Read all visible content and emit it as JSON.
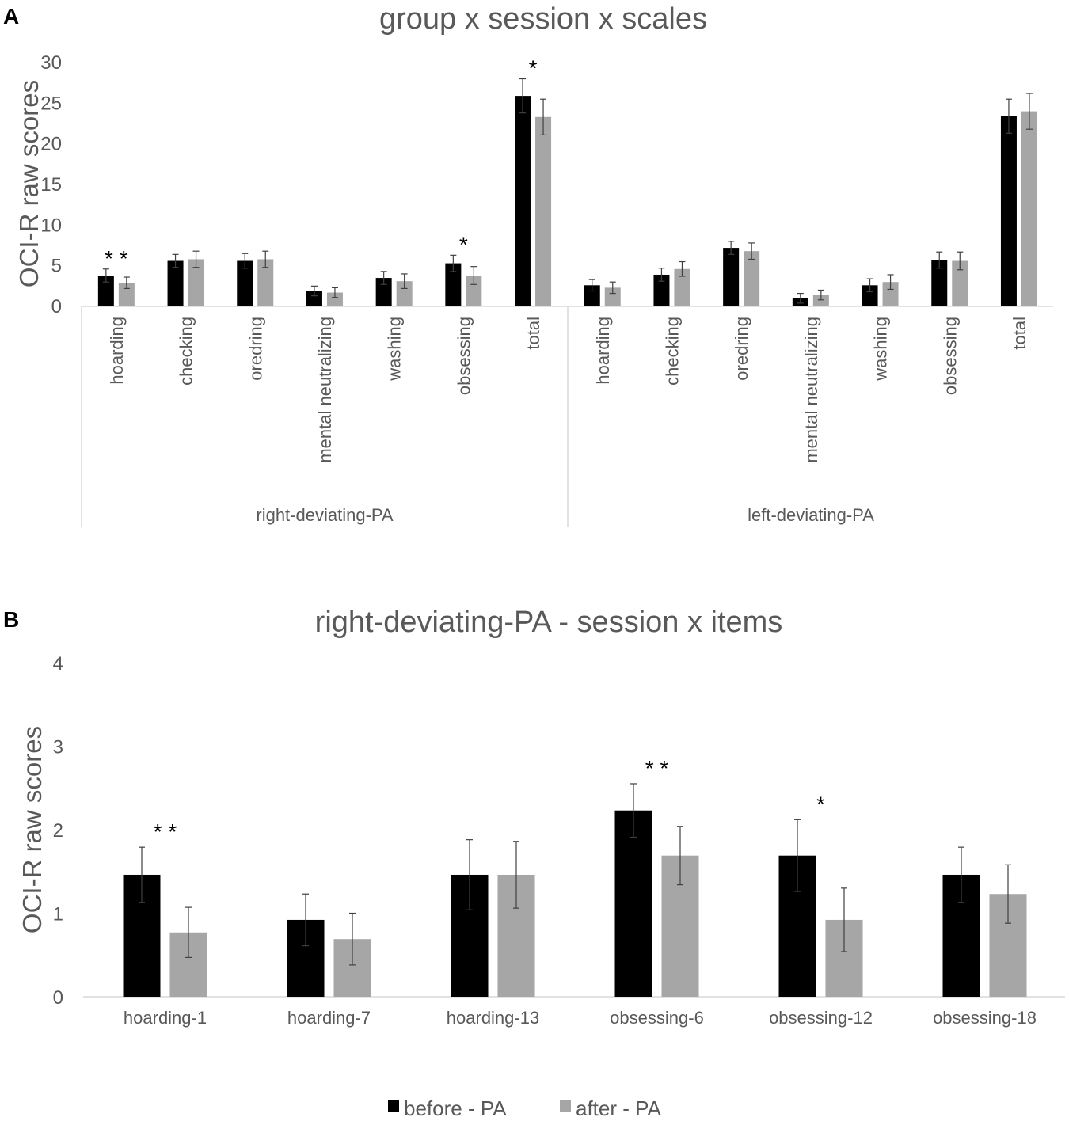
{
  "colors": {
    "before": "#000000",
    "after": "#a6a6a6"
  },
  "legend": {
    "before_label": "before - PA",
    "after_label": "after - PA"
  },
  "chart_data": [
    {
      "panel": "A",
      "type": "bar",
      "title": "group x session x scales",
      "ylabel": "OCI-R raw scores",
      "ylim": [
        0,
        30
      ],
      "yticks": [
        0,
        5,
        10,
        15,
        20,
        25,
        30
      ],
      "groups": [
        {
          "name": "right-deviating-PA",
          "categories": [
            "hoarding",
            "checking",
            "oredring",
            "mental neutralizing",
            "washing",
            "obsessing",
            "total"
          ],
          "before": [
            3.8,
            5.6,
            5.6,
            1.9,
            3.5,
            5.3,
            25.9
          ],
          "before_err": [
            0.8,
            0.8,
            0.9,
            0.6,
            0.8,
            1.0,
            2.1
          ],
          "after": [
            2.9,
            5.8,
            5.8,
            1.7,
            3.1,
            3.8,
            23.3
          ],
          "after_err": [
            0.7,
            1.0,
            1.0,
            0.6,
            0.9,
            1.1,
            2.2
          ],
          "significance": [
            "**",
            "",
            "",
            "",
            "",
            "*",
            "*"
          ]
        },
        {
          "name": "left-deviating-PA",
          "categories": [
            "hoarding",
            "checking",
            "oredring",
            "mental neutralizing",
            "washing",
            "obsessing",
            "total"
          ],
          "before": [
            2.6,
            3.9,
            7.2,
            1.0,
            2.6,
            5.7,
            23.4
          ],
          "before_err": [
            0.7,
            0.8,
            0.8,
            0.6,
            0.8,
            1.0,
            2.1
          ],
          "after": [
            2.3,
            4.6,
            6.8,
            1.4,
            3.0,
            5.6,
            24.0
          ],
          "after_err": [
            0.7,
            0.9,
            1.0,
            0.6,
            0.9,
            1.1,
            2.2
          ],
          "significance": [
            "",
            "",
            "",
            "",
            "",
            "",
            ""
          ]
        }
      ]
    },
    {
      "panel": "B",
      "type": "bar",
      "title": "right-deviating-PA - session x items",
      "ylabel": "OCI-R raw scores",
      "ylim": [
        0,
        4
      ],
      "yticks": [
        0,
        1,
        2,
        3,
        4
      ],
      "categories": [
        "hoarding-1",
        "hoarding-7",
        "hoarding-13",
        "obsessing-6",
        "obsessing-12",
        "obsessing-18"
      ],
      "before": [
        1.46,
        0.92,
        1.46,
        2.23,
        1.69,
        1.46
      ],
      "before_err": [
        0.33,
        0.31,
        0.42,
        0.32,
        0.43,
        0.33
      ],
      "after": [
        0.77,
        0.69,
        1.46,
        1.69,
        0.92,
        1.23
      ],
      "after_err": [
        0.3,
        0.31,
        0.4,
        0.35,
        0.38,
        0.35
      ],
      "significance": [
        "**",
        "",
        "",
        "**",
        "*",
        ""
      ]
    }
  ]
}
